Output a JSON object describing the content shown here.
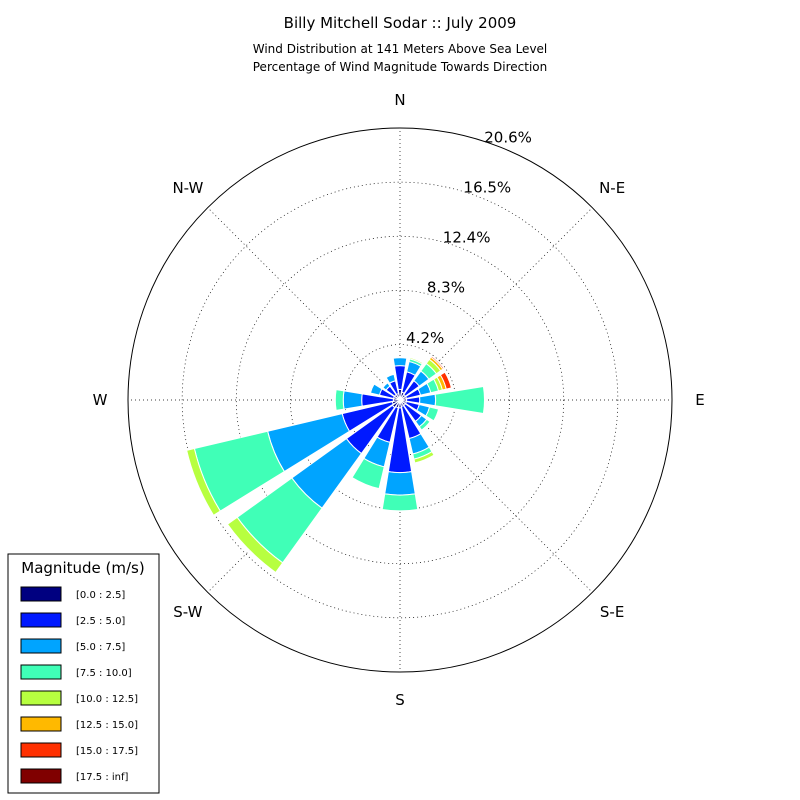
{
  "chart_data": {
    "type": "windrose",
    "title": "Billy Mitchell Sodar :: July 2009",
    "subtitle_lines": [
      "Wind Distribution at 141 Meters Above Sea Level",
      "Percentage of Wind Magnitude Towards Direction"
    ],
    "direction_labels": [
      "N",
      "N-E",
      "E",
      "S-E",
      "S",
      "S-W",
      "W",
      "N-W"
    ],
    "direction_angles": [
      0,
      45,
      90,
      135,
      180,
      225,
      270,
      315
    ],
    "radial_ticks": [
      4.2,
      8.3,
      12.4,
      16.5,
      20.6
    ],
    "radial_tick_labels": [
      "4.2%",
      "8.3%",
      "12.4%",
      "16.5%",
      "20.6%"
    ],
    "rmax": 20.6,
    "legend_title": "Magnitude (m/s)",
    "legend_placement": "lower-left",
    "bins": [
      {
        "label": "[0.0 : 2.5]",
        "color": "#000080"
      },
      {
        "label": "[2.5 : 5.0]",
        "color": "#0019ff"
      },
      {
        "label": "[5.0 : 7.5]",
        "color": "#00a4ff"
      },
      {
        "label": "[7.5 : 10.0]",
        "color": "#40ffb7"
      },
      {
        "label": "[10.0 : 12.5]",
        "color": "#b7ff40"
      },
      {
        "label": "[12.5 : 15.0]",
        "color": "#ffb900"
      },
      {
        "label": "[15.0 : 17.5]",
        "color": "#ff3000"
      },
      {
        "label": "[17.5 : inf]",
        "color": "#800000"
      }
    ],
    "sector_width_deg": 22.5,
    "sectors": [
      {
        "direction": 0,
        "cumulative": [
          0.8,
          2.6,
          3.2,
          3.2,
          3.2,
          3.2,
          3.2,
          3.2
        ]
      },
      {
        "direction": 22.5,
        "cumulative": [
          0.6,
          2.2,
          3.0,
          3.2,
          3.3,
          3.3,
          3.3,
          3.3
        ]
      },
      {
        "direction": 45,
        "cumulative": [
          0.5,
          1.8,
          2.7,
          3.4,
          3.8,
          4.0,
          4.1,
          4.1
        ]
      },
      {
        "direction": 67.5,
        "cumulative": [
          0.5,
          1.6,
          2.4,
          3.0,
          3.3,
          3.6,
          4.0,
          4.0
        ]
      },
      {
        "direction": 90,
        "cumulative": [
          0.5,
          1.5,
          2.7,
          6.4,
          6.4,
          6.4,
          6.4,
          6.4
        ]
      },
      {
        "direction": 112.5,
        "cumulative": [
          0.5,
          1.5,
          2.3,
          3.0,
          3.0,
          3.0,
          3.0,
          3.0
        ]
      },
      {
        "direction": 135,
        "cumulative": [
          0.5,
          2.0,
          2.5,
          2.8,
          2.8,
          2.8,
          2.8,
          2.8
        ]
      },
      {
        "direction": 157.5,
        "cumulative": [
          0.5,
          3.0,
          4.2,
          4.6,
          4.9,
          4.9,
          4.9,
          4.9
        ]
      },
      {
        "direction": 180,
        "cumulative": [
          0.6,
          5.5,
          7.2,
          8.4,
          8.4,
          8.4,
          8.4,
          8.4
        ]
      },
      {
        "direction": 202.5,
        "cumulative": [
          0.6,
          3.3,
          5.2,
          6.9,
          6.9,
          6.9,
          6.9,
          6.9
        ]
      },
      {
        "direction": 225,
        "cumulative": [
          0.7,
          5.0,
          10.1,
          15.2,
          16.1,
          16.1,
          16.1,
          16.1
        ]
      },
      {
        "direction": 247.5,
        "cumulative": [
          0.6,
          4.5,
          10.3,
          16.0,
          16.6,
          16.6,
          16.6,
          16.6
        ]
      },
      {
        "direction": 270,
        "cumulative": [
          0.5,
          2.9,
          4.3,
          4.9,
          4.9,
          4.9,
          4.9,
          4.9
        ]
      },
      {
        "direction": 292.5,
        "cumulative": [
          0.5,
          1.6,
          2.3,
          2.3,
          2.3,
          2.3,
          2.3,
          2.3
        ]
      },
      {
        "direction": 315,
        "cumulative": [
          0.5,
          1.3,
          1.6,
          1.6,
          1.6,
          1.6,
          1.6,
          1.6
        ]
      },
      {
        "direction": 337.5,
        "cumulative": [
          0.5,
          1.5,
          2.0,
          2.0,
          2.0,
          2.0,
          2.0,
          2.0
        ]
      }
    ]
  }
}
